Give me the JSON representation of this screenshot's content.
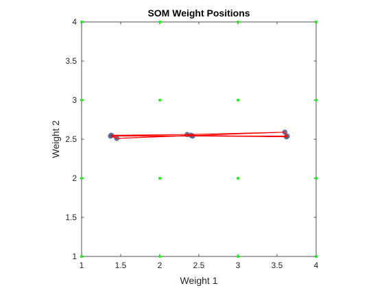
{
  "chart_data": {
    "type": "scatter",
    "title": "SOM Weight Positions",
    "xlabel": "Weight 1",
    "ylabel": "Weight 2",
    "xlim": [
      1,
      4
    ],
    "ylim": [
      1,
      4
    ],
    "xticks": [
      "1",
      "1.5",
      "2",
      "2.5",
      "3",
      "3.5",
      "4"
    ],
    "yticks": [
      "1",
      "1.5",
      "2",
      "2.5",
      "3",
      "3.5",
      "4"
    ],
    "grid": false,
    "colors": {
      "neuron_points": "#00ff00",
      "weight_points": "#4a6390",
      "connections": "#ff0000",
      "axes": "#262626"
    },
    "series": [
      {
        "kind": "grid-points",
        "points": [
          [
            1,
            1
          ],
          [
            2,
            1
          ],
          [
            3,
            1
          ],
          [
            4,
            1
          ],
          [
            1,
            2
          ],
          [
            2,
            2
          ],
          [
            3,
            2
          ],
          [
            4,
            2
          ],
          [
            1,
            3
          ],
          [
            2,
            3
          ],
          [
            3,
            3
          ],
          [
            4,
            3
          ],
          [
            1,
            4
          ],
          [
            2,
            4
          ],
          [
            3,
            4
          ],
          [
            4,
            4
          ]
        ]
      },
      {
        "kind": "weights",
        "points": [
          [
            1.38,
            2.55
          ],
          [
            1.45,
            2.51
          ],
          [
            2.35,
            2.56
          ],
          [
            2.4,
            2.55
          ],
          [
            3.6,
            2.59
          ],
          [
            3.62,
            2.53
          ],
          [
            1.37,
            2.54
          ],
          [
            2.42,
            2.54
          ],
          [
            3.63,
            2.54
          ]
        ]
      },
      {
        "kind": "connections",
        "segments": [
          [
            [
              1.38,
              2.55
            ],
            [
              2.35,
              2.56
            ]
          ],
          [
            [
              2.35,
              2.56
            ],
            [
              3.6,
              2.59
            ]
          ],
          [
            [
              1.45,
              2.51
            ],
            [
              2.4,
              2.55
            ]
          ],
          [
            [
              2.4,
              2.55
            ],
            [
              3.62,
              2.53
            ]
          ],
          [
            [
              1.37,
              2.54
            ],
            [
              2.42,
              2.54
            ]
          ],
          [
            [
              2.42,
              2.54
            ],
            [
              3.63,
              2.54
            ]
          ],
          [
            [
              1.38,
              2.55
            ],
            [
              1.45,
              2.51
            ]
          ],
          [
            [
              1.45,
              2.51
            ],
            [
              1.37,
              2.54
            ]
          ],
          [
            [
              2.35,
              2.56
            ],
            [
              2.4,
              2.55
            ]
          ],
          [
            [
              2.4,
              2.55
            ],
            [
              2.42,
              2.54
            ]
          ],
          [
            [
              3.6,
              2.59
            ],
            [
              3.62,
              2.53
            ]
          ],
          [
            [
              3.62,
              2.53
            ],
            [
              3.63,
              2.54
            ]
          ],
          [
            [
              1.38,
              2.55
            ],
            [
              3.62,
              2.53
            ]
          ],
          [
            [
              1.45,
              2.51
            ],
            [
              3.6,
              2.59
            ]
          ],
          [
            [
              1.37,
              2.54
            ],
            [
              3.63,
              2.54
            ]
          ]
        ]
      }
    ]
  }
}
